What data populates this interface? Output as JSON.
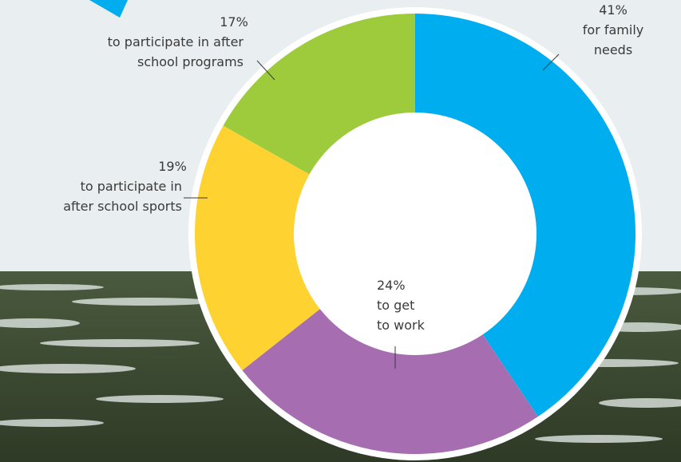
{
  "chart_data": {
    "type": "donut",
    "categories": [
      [
        "for family",
        "needs"
      ],
      [
        "to get",
        "to work"
      ],
      [
        "to participate in",
        "after school sports"
      ],
      [
        "to participate in after",
        "school programs"
      ]
    ],
    "values": [
      41,
      24,
      19,
      17
    ],
    "value_labels": [
      "41%",
      "24%",
      "19%",
      "17%"
    ],
    "colors": [
      "#00aeef",
      "#a66eb0",
      "#fdd231",
      "#9dcb3b"
    ]
  }
}
